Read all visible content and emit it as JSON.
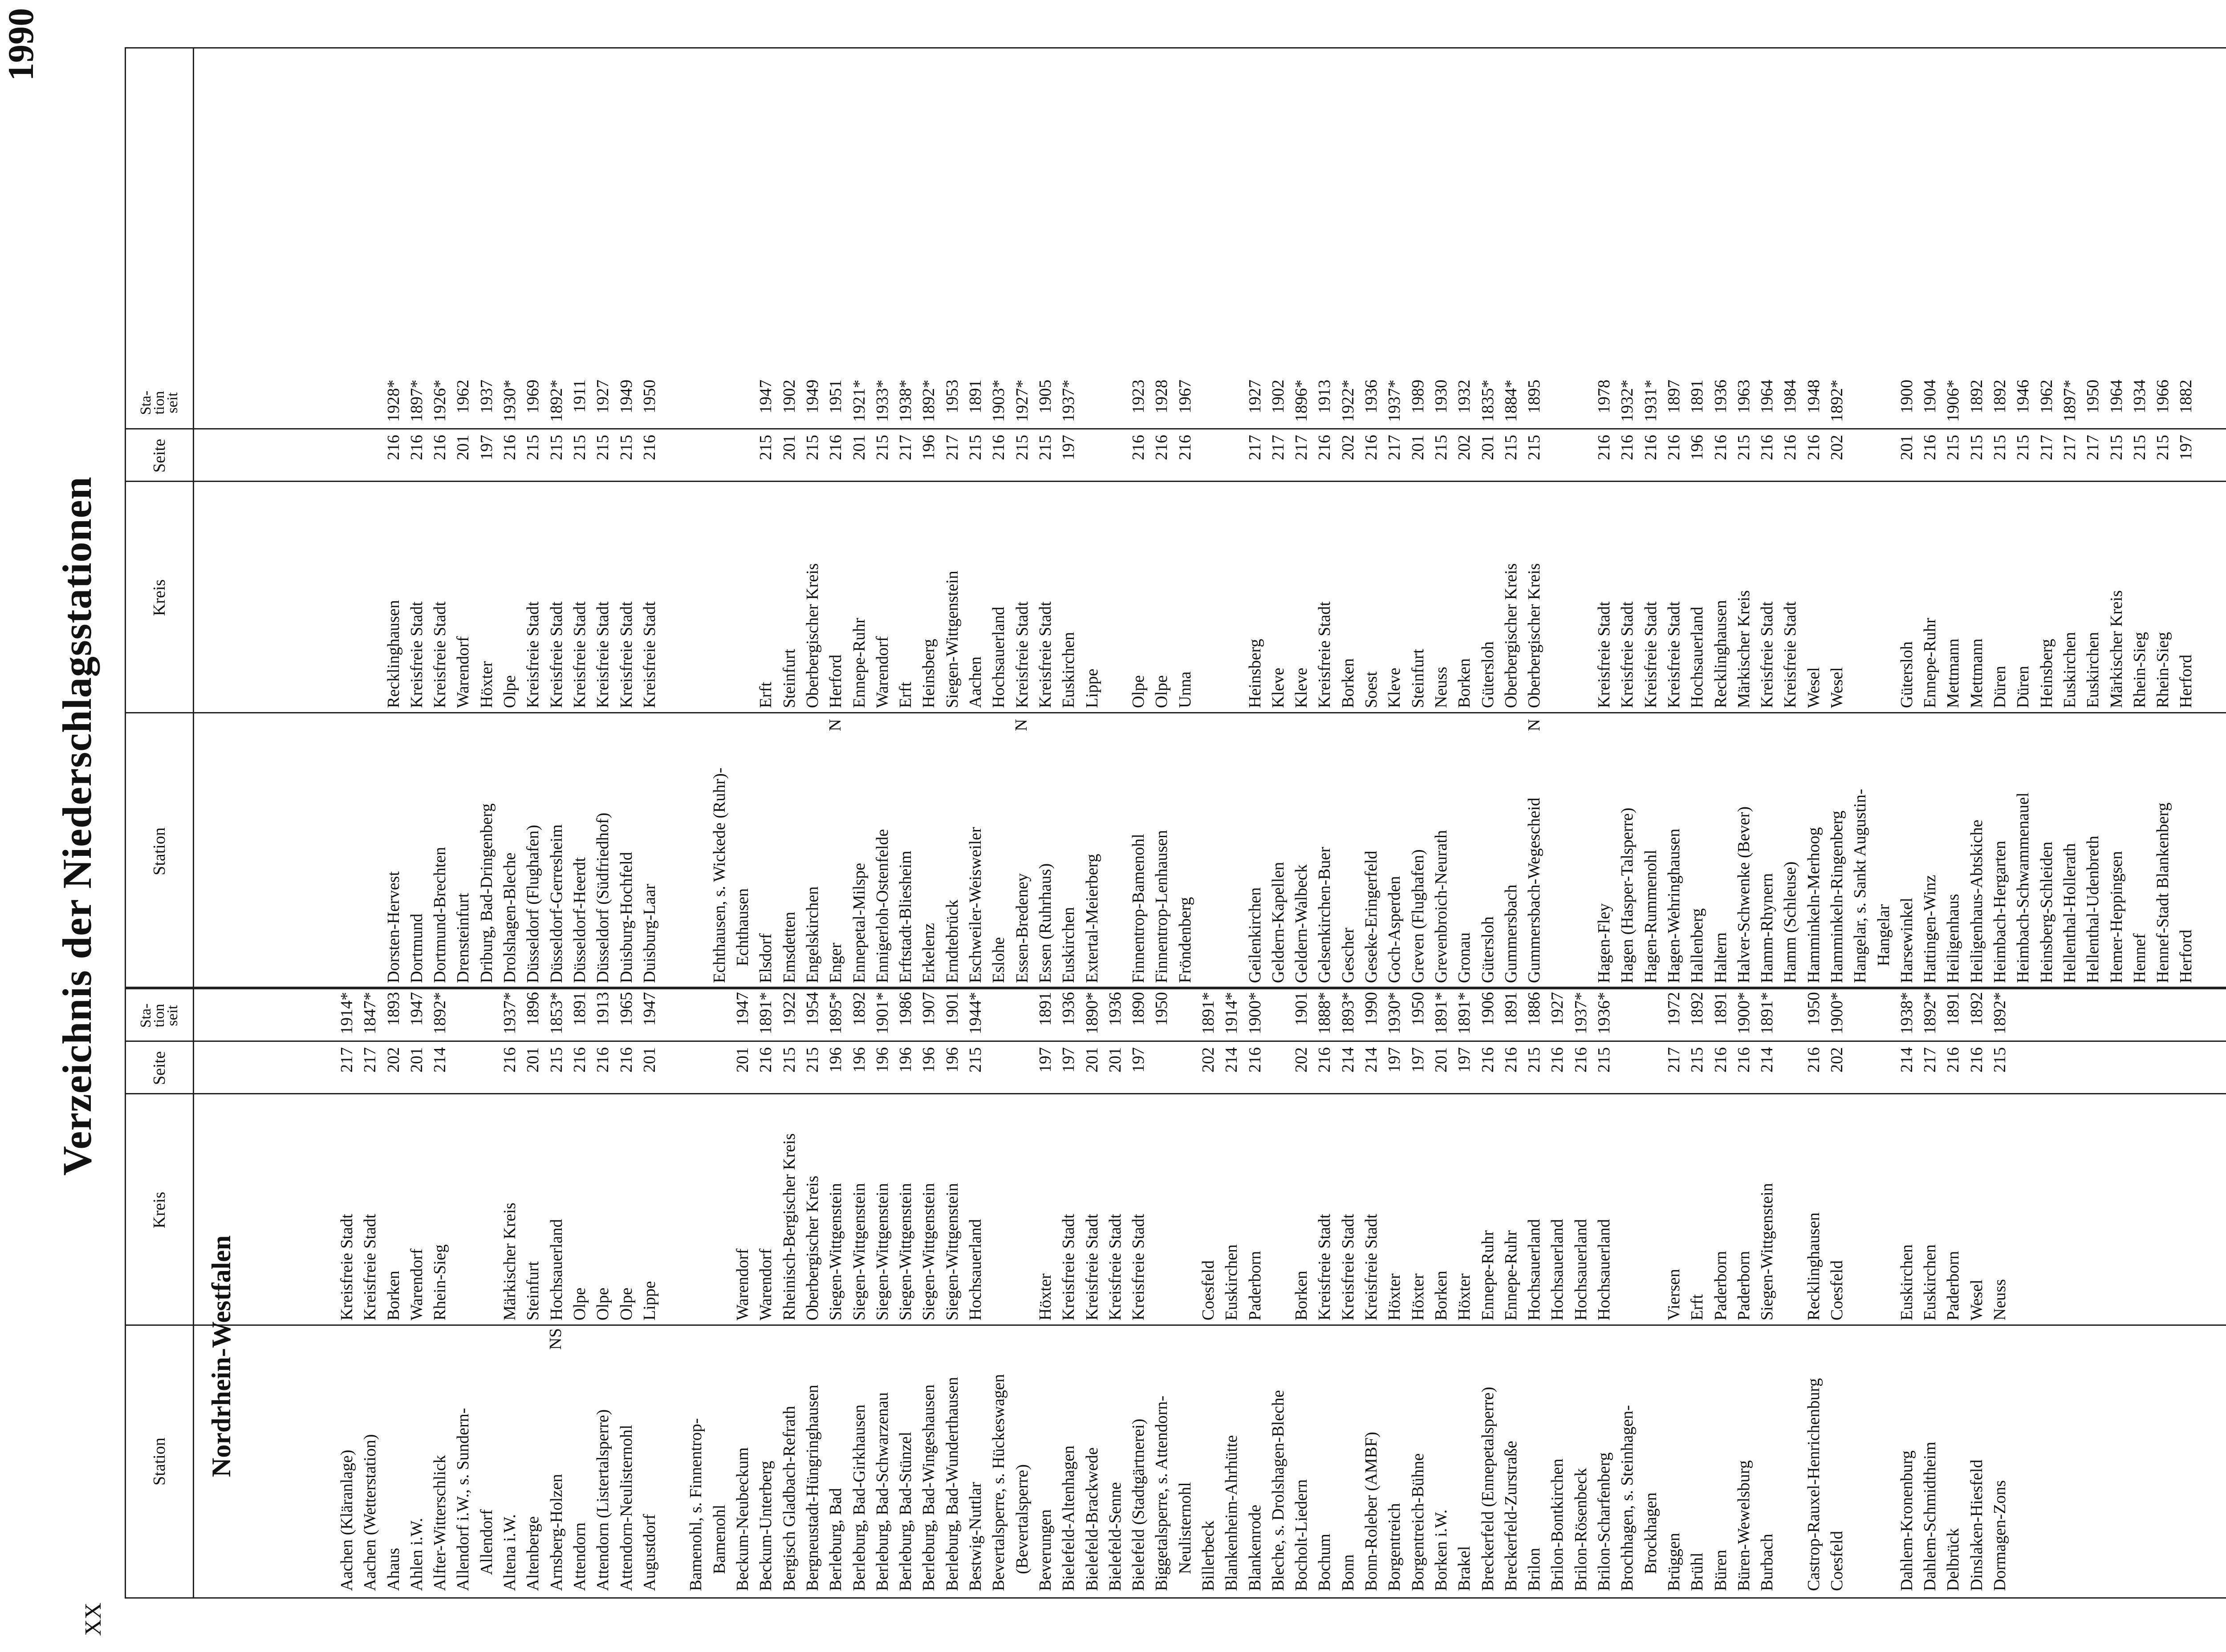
{
  "page_number": "XX",
  "year": "1990",
  "title": "Verzeichnis der Niederschlagsstationen",
  "region": "Nordrhein-Westfalen",
  "headers": {
    "station": "Station",
    "kreis": "Kreis",
    "seite": "Seite",
    "station_seit_1": "Sta-",
    "station_seit_2": "tion",
    "station_seit_3": "seit"
  },
  "flags": {
    "ns": "NS",
    "n1": "N",
    "n2": "N",
    "n3": "N"
  },
  "left": {
    "station": [
      "Aachen (Kläranlage)",
      "Aachen (Wetterstation)",
      "Ahaus",
      "Ahlen i.W.",
      "Alfter-Witterschlick",
      "Allendorf i.W., s. Sundern-",
      "    Allendorf",
      "Altena i.W.",
      "Altenberge",
      "Arnsberg-Holzen",
      "Attendorn",
      "Attendorn (Listertalsperre)",
      "Attendorn-Neulisternohl",
      "Augustdorf",
      "",
      "Bamenohl, s. Finnentrop-",
      "    Bamenohl",
      "Beckum-Neubeckum",
      "Beckum-Unterberg",
      "Bergisch Gladbach-Refrath",
      "Bergneustadt-Hüngringhausen",
      "Berleburg, Bad",
      "Berleburg, Bad-Girkhausen",
      "Berleburg, Bad-Schwarzenau",
      "Berleburg, Bad-Stünzel",
      "Berleburg, Bad-Wingeshausen",
      "Berleburg, Bad-Wunderthausen",
      "Bestwig-Nuttlar",
      "Bevertalsperre, s. Hückeswagen",
      "    (Bevertalsperre)",
      "Beverungen",
      "Bielefeld-Altenhagen",
      "Bielefeld-Brackwede",
      "Bielefeld-Senne",
      "Bielefeld (Stadtgärtnerei)",
      "Biggetalsperre, s. Attendorn-",
      "    Neulisternohl",
      "Billerbeck",
      "Blankenheim-Ahrhütte",
      "Blankenrode",
      "Bleche, s. Drolshagen-Bleche",
      "Bocholt-Liedern",
      "Bochum",
      "Bonn",
      "Bonn-Roleber (AMBF)",
      "Borgentreich",
      "Borgentreich-Bühne",
      "Borken i.W.",
      "Brakel",
      "Breckerfeld (Ennepetalsperre)",
      "Breckerfeld-Zurstraße",
      "Brilon",
      "Brilon-Bontkirchen",
      "Brilon-Rösenbeck",
      "Brilon-Scharfenberg",
      "Brochhagen, s. Steinhagen-",
      "    Brockhagen",
      "Brüggen",
      "Brühl",
      "Büren",
      "Büren-Wewelsburg",
      "Burbach",
      "",
      "Castrop-Rauxel-Henrichenburg",
      "Coesfeld",
      "",
      "",
      "Dahlem-Kronenburg",
      "Dahlem-Schmidtheim",
      "Delbrück",
      "Dinslaken-Hiesfeld",
      "Dormagen-Zons"
    ],
    "kreis": [
      "Kreisfreie Stadt",
      "Kreisfreie Stadt",
      "Borken",
      "Warendorf",
      "Rhein-Sieg",
      "",
      "",
      "Märkischer Kreis",
      "Steinfurt",
      "Hochsauerland",
      "Olpe",
      "Olpe",
      "Olpe",
      "Lippe",
      "",
      "",
      "",
      "Warendorf",
      "Warendorf",
      "Rheinisch-Bergischer Kreis",
      "Oberbergischer Kreis",
      "Siegen-Wittgenstein",
      "Siegen-Wittgenstein",
      "Siegen-Wittgenstein",
      "Siegen-Wittgenstein",
      "Siegen-Wittgenstein",
      "Siegen-Wittgenstein",
      "Hochsauerland",
      "",
      "",
      "Höxter",
      "Kreisfreie Stadt",
      "Kreisfreie Stadt",
      "Kreisfreie Stadt",
      "Kreisfreie Stadt",
      "",
      "",
      "Coesfeld",
      "Euskirchen",
      "Paderborn",
      "",
      "Borken",
      "Kreisfreie Stadt",
      "Kreisfreie Stadt",
      "Kreisfreie Stadt",
      "Höxter",
      "Höxter",
      "Borken",
      "Höxter",
      "Ennepe-Ruhr",
      "Ennepe-Ruhr",
      "Hochsauerland",
      "Hochsauerland",
      "Hochsauerland",
      "Hochsauerland",
      "",
      "",
      "Viersen",
      "Erft",
      "Paderborn",
      "Paderborn",
      "Siegen-Wittgenstein",
      "",
      "Recklinghausen",
      "Coesfeld",
      "",
      "",
      "Euskirchen",
      "Euskirchen",
      "Paderborn",
      "Wesel",
      "Neuss"
    ],
    "seite": [
      "217",
      "217",
      "202",
      "201",
      "214",
      "",
      "",
      "216",
      "201",
      "215",
      "216",
      "216",
      "216",
      "201",
      "",
      "",
      "",
      "201",
      "216",
      "215",
      "215",
      "196",
      "196",
      "196",
      "196",
      "196",
      "196",
      "215",
      "",
      "",
      "197",
      "197",
      "201",
      "201",
      "197",
      "",
      "",
      "202",
      "214",
      "216",
      "",
      "202",
      "216",
      "214",
      "214",
      "197",
      "197",
      "201",
      "197",
      "216",
      "216",
      "215",
      "216",
      "216",
      "215",
      "",
      "",
      "217",
      "215",
      "216",
      "216",
      "214",
      "",
      "216",
      "202",
      "",
      "",
      "214",
      "217",
      "216",
      "216",
      "215"
    ],
    "seit": [
      "1914*",
      "1847*",
      "1893",
      "1947",
      "1892*",
      "",
      "",
      "1937*",
      "1896",
      "1853*",
      "1891",
      "1913",
      "1965",
      "1947",
      "",
      "",
      "",
      "1947",
      "1891*",
      "1922",
      "1954",
      "1895*",
      "1892",
      "1901*",
      "1986",
      "1907",
      "1901",
      "1944*",
      "",
      "",
      "1891",
      "1936",
      "1890*",
      "1936",
      "1890",
      "1950",
      "",
      "1891*",
      "1914*",
      "1900*",
      "",
      "1901",
      "1888*",
      "1893*",
      "1990",
      "1930*",
      "1950",
      "1891*",
      "1891*",
      "1906",
      "1891",
      "1886",
      "1927",
      "1937*",
      "1936*",
      "",
      "",
      "1972",
      "1892",
      "1891",
      "1900*",
      "1891*",
      "",
      "1950",
      "1900*",
      "",
      "",
      "1938*",
      "1892*",
      "1891",
      "1892",
      "1892*"
    ]
  },
  "right": {
    "station": [
      "",
      "",
      "Dorsten-Hervest",
      "Dortmund",
      "Dortmund-Brechten",
      "Drensteinfurt",
      "Driburg, Bad-Dringenberg",
      "Drolshagen-Bleche",
      "Düsseldorf (Flughafen)",
      "Düsseldorf-Gerresheim",
      "Düsseldorf-Heerdt",
      "Düsseldorf (Südfriedhof)",
      "Duisburg-Hochfeld",
      "Duisburg-Laar",
      "",
      "",
      "Echthausen, s. Wickede (Ruhr)-",
      "    Echthausen",
      "Elsdorf",
      "Emsdetten",
      "Engelskirchen",
      "Enger",
      "Ennepetal-Milspe",
      "Ennigerloh-Ostenfelde",
      "Erftstadt-Bliesheim",
      "Erkelenz",
      "Erndtebrück",
      "Eschweiler-Weisweiler",
      "Eslohe",
      "Essen-Bredeney",
      "Essen (Ruhrhaus)",
      "Euskirchen",
      "Extertal-Meierberg",
      "",
      "Finnentrop-Bamenohl",
      "Finnentrop-Lenhausen",
      "Fröndenberg",
      "",
      "",
      "Geilenkirchen",
      "Geldern-Kapellen",
      "Geldern-Walbeck",
      "Gelsenkirchen-Buer",
      "Gescher",
      "Geseke-Eringerfeld",
      "Goch-Asperden",
      "Greven (Flughafen)",
      "Grevenbroich-Neurath",
      "Gronau",
      "Gütersloh",
      "Gummersbach",
      "Gummersbach-Wegescheid",
      "",
      "",
      "Hagen-Fley",
      "Hagen (Hasper-Talsperre)",
      "Hagen-Rummenohl",
      "Hagen-Wehringhausen",
      "Hallenberg",
      "Haltern",
      "Halver-Schwenke (Bever)",
      "Hamm-Rhynern",
      "Hamm (Schleuse)",
      "Hamminkeln-Merhoog",
      "Hamminkeln-Ringenberg",
      "Hangelar, s. Sankt Augustin-",
      "    Hangelar",
      "Harsewinkel",
      "Hattingen-Winz",
      "Heiligenhaus",
      "Heiligenhaus-Abtskiche",
      "Heimbach-Hergarten",
      "Heimbach-Schwammenauel",
      "Heinsberg-Schleiden",
      "Hellenthal-Hollerath",
      "Hellenthal-Udenbreth",
      "Hemer-Heppingsen",
      "Hennef",
      "Hennef-Stadt Blankenberg",
      "Herford"
    ],
    "kreis": [
      "",
      "",
      "Recklinghausen",
      "Kreisfreie Stadt",
      "Kreisfreie Stadt",
      "Warendorf",
      "Höxter",
      "Olpe",
      "Kreisfreie Stadt",
      "Kreisfreie Stadt",
      "Kreisfreie Stadt",
      "Kreisfreie Stadt",
      "Kreisfreie Stadt",
      "Kreisfreie Stadt",
      "",
      "",
      "",
      "",
      "Erft",
      "Steinfurt",
      "Oberbergischer Kreis",
      "Herford",
      "Ennepe-Ruhr",
      "Warendorf",
      "Erft",
      "Heinsberg",
      "Siegen-Wittgenstein",
      "Aachen",
      "Hochsauerland",
      "Kreisfreie Stadt",
      "Kreisfreie Stadt",
      "Euskirchen",
      "Lippe",
      "",
      "Olpe",
      "Olpe",
      "Unna",
      "",
      "",
      "Heinsberg",
      "Kleve",
      "Kleve",
      "Kreisfreie Stadt",
      "Borken",
      "Soest",
      "Kleve",
      "Steinfurt",
      "Neuss",
      "Borken",
      "Gütersloh",
      "Oberbergischer Kreis",
      "Oberbergischer Kreis",
      "",
      "",
      "Kreisfreie Stadt",
      "Kreisfreie Stadt",
      "Kreisfreie Stadt",
      "Kreisfreie Stadt",
      "Hochsauerland",
      "Recklinghausen",
      "Märkischer Kreis",
      "Kreisfreie Stadt",
      "Kreisfreie Stadt",
      "Wesel",
      "Wesel",
      "",
      "",
      "Gütersloh",
      "Ennepe-Ruhr",
      "Mettmann",
      "Mettmann",
      "Düren",
      "Düren",
      "Heinsberg",
      "Euskirchen",
      "Euskirchen",
      "Märkischer Kreis",
      "Rhein-Sieg",
      "Rhein-Sieg",
      "Herford"
    ],
    "seite": [
      "",
      "",
      "216",
      "216",
      "216",
      "201",
      "197",
      "216",
      "215",
      "215",
      "215",
      "215",
      "215",
      "216",
      "",
      "",
      "",
      "",
      "215",
      "201",
      "215",
      "216",
      "201",
      "215",
      "217",
      "196",
      "217",
      "215",
      "216",
      "215",
      "215",
      "197",
      "",
      "",
      "216",
      "216",
      "216",
      "",
      "",
      "217",
      "217",
      "217",
      "216",
      "202",
      "216",
      "217",
      "201",
      "215",
      "202",
      "201",
      "215",
      "215",
      "",
      "",
      "216",
      "216",
      "216",
      "216",
      "196",
      "216",
      "215",
      "216",
      "216",
      "216",
      "202",
      "",
      "",
      "201",
      "216",
      "215",
      "215",
      "215",
      "215",
      "217",
      "217",
      "217",
      "215",
      "215",
      "215",
      "197"
    ],
    "seit": [
      "",
      "",
      "1928*",
      "1897*",
      "1926*",
      "1962",
      "1937",
      "1930*",
      "1969",
      "1892*",
      "1911",
      "1927",
      "1949",
      "1950",
      "",
      "",
      "",
      "",
      "1947",
      "1902",
      "1949",
      "1951",
      "1921*",
      "1933*",
      "1938*",
      "1892*",
      "1953",
      "1891",
      "1903*",
      "1927*",
      "1905",
      "1937*",
      "",
      "",
      "1923",
      "1928",
      "1967",
      "",
      "",
      "1927",
      "1902",
      "1896*",
      "1913",
      "1922*",
      "1936",
      "1937*",
      "1989",
      "1930",
      "1932",
      "1835*",
      "1884*",
      "1895",
      "",
      "",
      "1978",
      "1932*",
      "1931*",
      "1897",
      "1891",
      "1936",
      "1963",
      "1964",
      "1984",
      "1948",
      "1892*",
      "",
      "",
      "1900",
      "1904",
      "1906*",
      "1892",
      "1892",
      "1946",
      "1962",
      "1897*",
      "1950",
      "1964",
      "1934",
      "1966",
      "1882"
    ]
  }
}
